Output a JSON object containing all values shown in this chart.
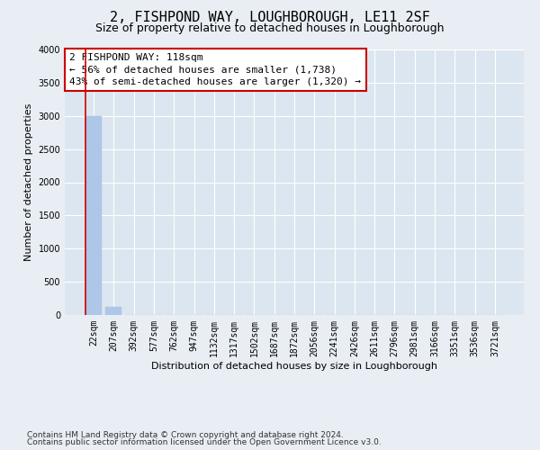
{
  "title": "2, FISHPOND WAY, LOUGHBOROUGH, LE11 2SF",
  "subtitle": "Size of property relative to detached houses in Loughborough",
  "xlabel": "Distribution of detached houses by size in Loughborough",
  "ylabel": "Number of detached properties",
  "footnote1": "Contains HM Land Registry data © Crown copyright and database right 2024.",
  "footnote2": "Contains public sector information licensed under the Open Government Licence v3.0.",
  "bar_labels": [
    "22sqm",
    "207sqm",
    "392sqm",
    "577sqm",
    "762sqm",
    "947sqm",
    "1132sqm",
    "1317sqm",
    "1502sqm",
    "1687sqm",
    "1872sqm",
    "2056sqm",
    "2241sqm",
    "2426sqm",
    "2611sqm",
    "2796sqm",
    "2981sqm",
    "3166sqm",
    "3351sqm",
    "3536sqm",
    "3721sqm"
  ],
  "bar_values": [
    3000,
    120,
    0,
    0,
    0,
    0,
    0,
    0,
    0,
    0,
    0,
    0,
    0,
    0,
    0,
    0,
    0,
    0,
    0,
    0,
    0
  ],
  "bar_color": "#aec6e8",
  "bar_edge_color": "#aec6e8",
  "vline_color": "#cc0000",
  "ylim": [
    0,
    4000
  ],
  "yticks": [
    0,
    500,
    1000,
    1500,
    2000,
    2500,
    3000,
    3500,
    4000
  ],
  "annotation_text_line1": "2 FISHPOND WAY: 118sqm",
  "annotation_text_line2": "← 56% of detached houses are smaller (1,738)",
  "annotation_text_line3": "43% of semi-detached houses are larger (1,320) →",
  "annotation_box_color": "#ffffff",
  "annotation_box_edge_color": "#cc0000",
  "bg_color": "#e8eef4",
  "plot_bg_color": "#dce6f0",
  "grid_color": "#ffffff",
  "title_fontsize": 11,
  "subtitle_fontsize": 9,
  "axis_label_fontsize": 8,
  "tick_fontsize": 7,
  "annotation_fontsize": 8,
  "footnote_fontsize": 6.5
}
